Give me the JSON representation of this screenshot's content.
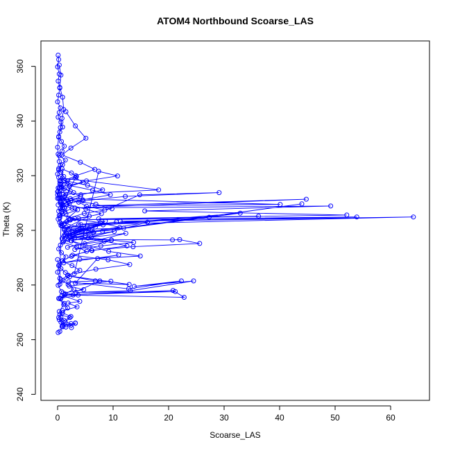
{
  "chart_data": {
    "type": "scatter",
    "title": "ATOM4 Northbound Scoarse_LAS",
    "xlabel": "Scoarse_LAS",
    "ylabel": "Theta (K)",
    "xlim": [
      -3,
      67
    ],
    "ylim": [
      237.8,
      369.3
    ],
    "xticks": [
      0,
      10,
      20,
      30,
      40,
      50,
      60
    ],
    "yticks": [
      240,
      260,
      280,
      300,
      320,
      340,
      360
    ],
    "grid": false,
    "legend": "none",
    "colors": {
      "series": "#0000ff",
      "axes": "#000000",
      "background": "#ffffff"
    },
    "series": [
      {
        "style": "line+points",
        "x": [
          0.3,
          0.6,
          0.4,
          0.9,
          1.1,
          0.8,
          0.5,
          0.2,
          0.0,
          0.1,
          0.3,
          0.5,
          0.2,
          0.0,
          0.2,
          0.4,
          0.6,
          0.3,
          0.1,
          0.0,
          0.2,
          0.5,
          0.9,
          1.3,
          0.7,
          0.3,
          0.1,
          0.4,
          0.8,
          1.2,
          1.6,
          2.1,
          1.1,
          0.5,
          0.2,
          0.7,
          1.5,
          0.9,
          0.3,
          0.6,
          1.4,
          2.2,
          1.0,
          0.4,
          0.8,
          2.5,
          3.4,
          1.8,
          0.6,
          1.2,
          2.9,
          4.1,
          2.4,
          1.0,
          0.5,
          3.2,
          4.6,
          2.1,
          0.9,
          18.2,
          1.5,
          0.7,
          3.8,
          5.2,
          8.5,
          14.8,
          29.1,
          12.2,
          4.6,
          2.3,
          40.1,
          6.2,
          44.8,
          3.1,
          49.2,
          15.7,
          52.1,
          7.4,
          36.2,
          2.1,
          53.9,
          11.3,
          64.1,
          4.2,
          27.3,
          1.6,
          32.9,
          8.1,
          44.0,
          2.8,
          16.2,
          5.5,
          9.7,
          1.9,
          20.7,
          22.0,
          25.6,
          13.6,
          6.1,
          2.5,
          9.2,
          14.9,
          4.0,
          1.1,
          11.0,
          7.2,
          3.2,
          12.9,
          1.8,
          6.8,
          9.6,
          2.1,
          4.7,
          1.0,
          3.7,
          0.6,
          7.6,
          2.0,
          12.8,
          22.3,
          13.8,
          24.5,
          13.1,
          3.3,
          21.2,
          1.2,
          20.8,
          22.8,
          2.8,
          0.8,
          4.0,
          1.9,
          3.5,
          0.9,
          0.4,
          2.2,
          1.2,
          0.6,
          1.4,
          2.4,
          0.8,
          3.2,
          1.5,
          0.3,
          2.5,
          3.2,
          0.9,
          2.4,
          0.3,
          1.1,
          0.2,
          0.7,
          0.1,
          0.4,
          0.0,
          0.2,
          0.0
        ],
        "y": [
          360.5,
          356.8,
          352.3,
          348.7,
          344.2,
          341.0,
          337.6,
          334.1,
          330.4,
          327.9,
          325.2,
          323.8,
          322.1,
          320.6,
          319.4,
          318.0,
          316.9,
          315.6,
          314.3,
          313.0,
          311.8,
          310.4,
          309.2,
          308.0,
          306.7,
          305.4,
          304.1,
          302.9,
          301.6,
          300.2,
          298.9,
          297.4,
          296.1,
          294.6,
          293.2,
          291.8,
          290.3,
          288.9,
          287.4,
          286.0,
          284.6,
          283.1,
          281.7,
          280.3,
          322.5,
          321.0,
          319.6,
          318.1,
          316.7,
          315.2,
          313.8,
          312.3,
          310.9,
          309.4,
          308.0,
          319.2,
          317.6,
          316.1,
          319.1,
          314.8,
          313.2,
          311.7,
          310.3,
          308.8,
          307.4,
          313.0,
          313.8,
          312.4,
          310.8,
          311.6,
          309.5,
          309.0,
          311.4,
          308.2,
          308.9,
          307.1,
          305.6,
          304.2,
          305.2,
          303.8,
          304.9,
          303.3,
          304.9,
          302.1,
          304.8,
          301.0,
          306.3,
          299.7,
          309.7,
          298.4,
          303.0,
          297.2,
          296.5,
          296.7,
          296.5,
          296.6,
          295.2,
          294.0,
          292.7,
          296.1,
          292.3,
          290.6,
          289.4,
          288.1,
          291.0,
          289.7,
          280.7,
          280.2,
          283.4,
          281.5,
          281.4,
          279.6,
          278.3,
          277.1,
          276.3,
          275.1,
          281.5,
          281.2,
          278.6,
          281.5,
          279.5,
          281.5,
          277.9,
          277.3,
          277.6,
          276.4,
          278.0,
          275.5,
          276.3,
          276.2,
          274.0,
          273.4,
          272.0,
          270.6,
          269.2,
          268.1,
          267.0,
          268.2,
          266.4,
          265.9,
          264.8,
          266.1,
          264.6,
          267.3,
          264.4,
          266.0,
          265.3,
          268.5,
          270.3,
          272.8,
          275.1,
          277.6,
          279.9,
          282.4,
          284.7,
          287.1,
          289.3
        ]
      },
      {
        "style": "line+points",
        "x": [
          0.1,
          0.2,
          0.0,
          0.3,
          0.1,
          0.4,
          0.2,
          0.0,
          0.5,
          0.3,
          0.1,
          0.6,
          0.9,
          0.4,
          0.2,
          0.7,
          1.2,
          0.8,
          0.3,
          1.4,
          0.9,
          0.2,
          0.6,
          1.1,
          0.5,
          1.7,
          0.8,
          2.3,
          1.0,
          0.4,
          1.9,
          0.7,
          2.6,
          1.3,
          0.5,
          3.1,
          1.6,
          0.6,
          2.2,
          4.3,
          1.4,
          0.8,
          5.6,
          2.7,
          1.1,
          6.8,
          3.5,
          1.3,
          8.2,
          4.4,
          1.5,
          10.6,
          5.3,
          2.0,
          11.9,
          6.4,
          2.6,
          13.7,
          7.8,
          3.1,
          9.7,
          4.9,
          1.8,
          12.3,
          6.1,
          2.4,
          10.2,
          5.0,
          1.9,
          8.6,
          3.8,
          1.2,
          5.7,
          2.3,
          0.7,
          3.6,
          1.5,
          0.4,
          2.1,
          0.9,
          0.2,
          1.3,
          0.5,
          0.1,
          0.8,
          0.3,
          0.0,
          0.4,
          0.1,
          0.0
        ],
        "y": [
          364.1,
          362.5,
          359.8,
          357.2,
          354.6,
          352.1,
          349.5,
          347.0,
          344.8,
          343.1,
          341.4,
          339.6,
          337.8,
          336.0,
          334.3,
          332.5,
          330.8,
          329.0,
          327.3,
          325.7,
          324.0,
          322.6,
          321.2,
          319.7,
          318.3,
          317.0,
          315.7,
          314.4,
          313.1,
          311.9,
          310.6,
          309.3,
          308.1,
          306.8,
          305.6,
          304.3,
          303.1,
          301.8,
          300.6,
          299.4,
          298.2,
          297.0,
          300.5,
          299.1,
          297.8,
          301.2,
          299.9,
          298.5,
          302.0,
          300.7,
          299.3,
          303.1,
          301.6,
          300.2,
          300.8,
          299.4,
          297.9,
          295.6,
          294.3,
          293.0,
          296.4,
          295.1,
          293.8,
          298.9,
          297.5,
          296.2,
          299.6,
          298.1,
          296.7,
          303.4,
          302.0,
          300.6,
          305.2,
          303.8,
          302.4,
          307.5,
          306.0,
          304.6,
          309.8,
          308.4,
          307.0,
          312.2,
          310.7,
          309.3,
          314.6,
          313.1,
          311.7,
          317.0,
          315.5,
          314.1
        ]
      },
      {
        "style": "line+points",
        "x": [
          1.5,
          3.2,
          5.1,
          2.4,
          0.8,
          4.1,
          6.7,
          3.3,
          1.2,
          5.4,
          8.1,
          4.2,
          1.6,
          6.9,
          9.8,
          4.8,
          2.0,
          7.7,
          11.2,
          5.6,
          2.3,
          8.4,
          12.5,
          6.2,
          2.7,
          9.1,
          13.0,
          6.9,
          3.0,
          7.4,
          10.8,
          5.2,
          2.2,
          6.3,
          9.5,
          4.5,
          1.7,
          5.1,
          7.9,
          3.8,
          1.3,
          4.2,
          6.5,
          3.1,
          1.0,
          3.4,
          5.2,
          2.5,
          0.8,
          2.6,
          4.0,
          1.9,
          0.6,
          1.9,
          2.9,
          1.4,
          0.4,
          1.2,
          1.8,
          0.9,
          0.2,
          0.6,
          0.9,
          0.4,
          0.1
        ],
        "y": [
          343.4,
          338.2,
          333.7,
          330.1,
          327.6,
          324.9,
          322.3,
          320.0,
          318.2,
          316.5,
          314.8,
          313.0,
          311.3,
          309.6,
          307.9,
          306.2,
          304.5,
          302.8,
          301.1,
          299.4,
          297.7,
          296.0,
          294.3,
          292.6,
          290.9,
          289.2,
          287.5,
          285.8,
          284.1,
          321.6,
          319.9,
          318.1,
          316.4,
          314.7,
          313.0,
          311.2,
          309.5,
          307.8,
          306.1,
          304.3,
          302.6,
          300.9,
          299.2,
          297.4,
          295.7,
          294.0,
          292.3,
          290.5,
          288.8,
          287.1,
          285.4,
          283.6,
          281.9,
          280.2,
          278.5,
          276.7,
          275.0,
          273.3,
          271.6,
          269.8,
          268.1,
          266.4,
          264.7,
          263.0,
          262.6
        ]
      }
    ]
  }
}
